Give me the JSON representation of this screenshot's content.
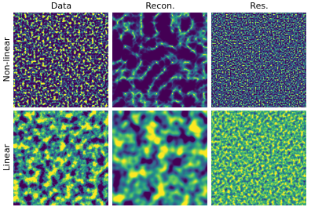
{
  "columns": [
    "Data",
    "Recon.",
    "Res."
  ],
  "rows": [
    "Non-linear",
    "Linear"
  ]
}
